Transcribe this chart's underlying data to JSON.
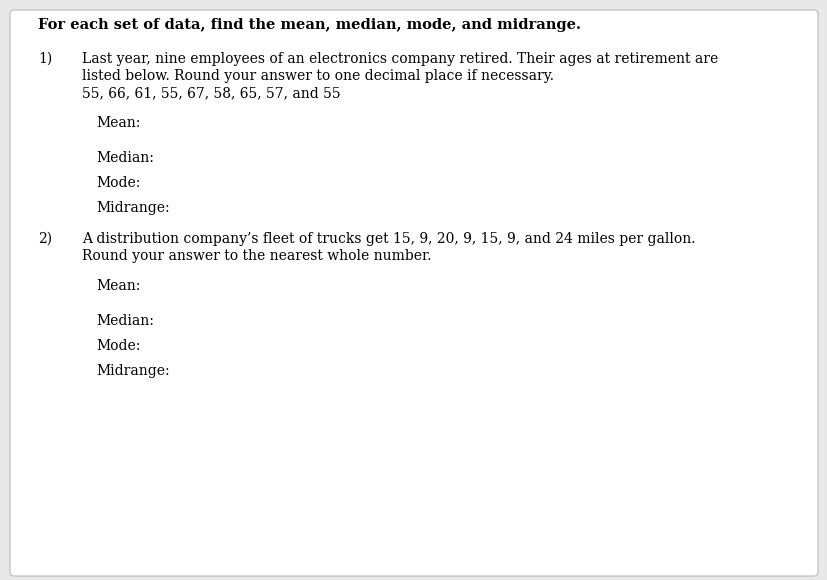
{
  "background_color": "#e8e8e8",
  "box_color": "#ffffff",
  "text_color": "#000000",
  "title": "For each set of data, find the mean, median, mode, and midrange.",
  "q1_number": "1)",
  "q1_line1": "Last year, nine employees of an electronics company retired. Their ages at retirement are",
  "q1_line2": "listed below. Round your answer to one decimal place if necessary.",
  "q1_line3": "55, 66, 61, 55, 67, 58, 65, 57, and 55",
  "q1_mean": "Mean:",
  "q1_median": "Median:",
  "q1_mode": "Mode:",
  "q1_midrange": "Midrange:",
  "q2_number": "2)",
  "q2_line1": "A distribution company’s fleet of trucks get 15, 9, 20, 9, 15, 9, and 24 miles per gallon.",
  "q2_line2": "Round your answer to the nearest whole number.",
  "q2_mean": "Mean:",
  "q2_median": "Median:",
  "q2_mode": "Mode:",
  "q2_midrange": "Midrange:",
  "font_family": "DejaVu Serif",
  "title_fontsize": 10.5,
  "body_fontsize": 10.0,
  "label_fontsize": 10.0
}
